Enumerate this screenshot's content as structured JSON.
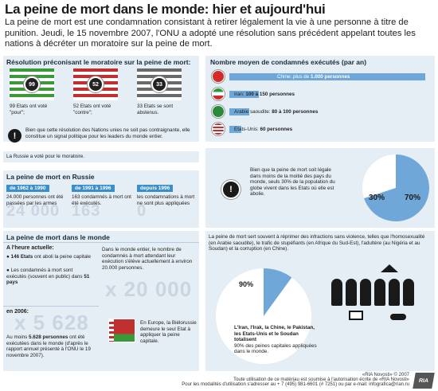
{
  "title": "La peine de mort dans le monde: hier et aujourd'hui",
  "intro": "La peine de mort est une condamnation consistant à retirer légalement la vie à une personne à titre de punition. Jeudi, le 15 novembre 2007, l'ONU a adopté une résolution sans précédent appelant toutes les nations à décréter un moratoire sur la peine de mort.",
  "resolution": {
    "title": "Résolution préconisant le moratoire sur la peine de mort:",
    "votes": [
      {
        "count": "99",
        "text": "99 Etats ont voté \"pour\";",
        "c1": "#3a9a3a",
        "c2": "#ffffff"
      },
      {
        "count": "52",
        "text": "52 Etats ont voté \"contre\";",
        "c1": "#c03030",
        "c2": "#ffffff"
      },
      {
        "count": "33",
        "text": "33 Etats se sont abstenus.",
        "c1": "#6a6a6a",
        "c2": "#ffffff"
      }
    ],
    "note": "Bien que cette résolution des Nations unies ne soit pas contraignante, elle constitue un signal politique pour les leaders du monde entier.",
    "russia_vote": "La Russie a voté pour le moratoire."
  },
  "executions": {
    "title": "Nombre moyen de condamnés exécutés (par an)",
    "rows": [
      {
        "country_label": "Chine: plus de",
        "value_label": "1.000 personnes",
        "fraction": 1.0,
        "flag": "china-flag-icon"
      },
      {
        "country_label": "Iran:",
        "value_label": "100 à 150 personnes",
        "fraction": 0.15,
        "flag": "iran-flag-icon"
      },
      {
        "country_label": "Arabie saoudite:",
        "value_label": "80 à 100 personnes",
        "fraction": 0.1,
        "flag": "saudi-flag-icon"
      },
      {
        "country_label": "Etats-Unis:",
        "value_label": "60 personnes",
        "fraction": 0.06,
        "flag": "usa-flag-icon"
      }
    ]
  },
  "legal": {
    "text": "Bien que la peine de mort soit légale dans moins de la moitié des pays du monde, seuls 30% de la population du globe vivent dans les Etats où elle est abolie.",
    "pct_small": "30%",
    "pct_large": "70%",
    "fraction": 0.3
  },
  "russia": {
    "title": "La peine de mort en Russie",
    "periods": [
      {
        "label": "de 1962 à 1990",
        "text": "24.000 personnes ont été passées par les armes"
      },
      {
        "label": "de 1991 à 1996",
        "text": "163 condamnés à mort ont été exécutés."
      },
      {
        "label": "depuis 1996",
        "text": "les condamnations à mort ne sont plus appliquées"
      }
    ],
    "bignums": [
      "24 000",
      "163",
      "0"
    ]
  },
  "world": {
    "title": "La peine de mort dans le monde",
    "now_title": "A l'heure actuelle:",
    "now_items": [
      {
        "bold": "146 Etats",
        "text": " ont aboli la peine capitale"
      },
      {
        "bold": "",
        "text": "Les condamnés à mort sont exécutés (souvent en public) dans ",
        "bold2": "51 pays"
      }
    ],
    "waiting_text": "Dans le monde entier, le nombre de condamnés à mort attendant leur exécution s'élève actuellement à environ 20.000 personnes.",
    "waiting_big": "x 20 000",
    "y2006_title": "en 2006:",
    "y2006_big": "x 5 628",
    "y2006_text_bold": "5.628 personnes",
    "y2006_text_pre": "Au moins ",
    "y2006_text_post": " ont été exécutées dans le monde (d'après le rapport annuel présenté à l'ONU le 19 novembre 2007).",
    "belarus_text": "En Europe, la Biélorussie demeure le seul Etat à appliquer la peine capitale."
  },
  "crimes": {
    "text": "La peine de mort sert souvent à réprimer des infractions sans violence, telles que l'homosexualité (en Arabie saoudite), le trafic de stupéfiants (en Afrique du Sud-Est), l'adultère (au Nigéria et au Soudan) et la corruption (en Chine).",
    "pct": "90%",
    "fraction": 0.9,
    "countries_bold": "L'Iran, l'Irak, la Chine, le Pakistan, les Etats-Unis et le Soudan totalisent",
    "countries_text": "90% des peines capitales appliquées dans le monde."
  },
  "footer": {
    "copyright": "«RIA Novosti» © 2007",
    "line1": "Toute utilisation de ce matériau est soumise à l'autorisation écrite de «RIA Novosti»",
    "line2": "Pour les modalités d'utilisation s'adresser au + 7 (495) 981-6601 (# 7251) ou par e-mail: infografica@rian.ru",
    "logo": "RIA"
  }
}
